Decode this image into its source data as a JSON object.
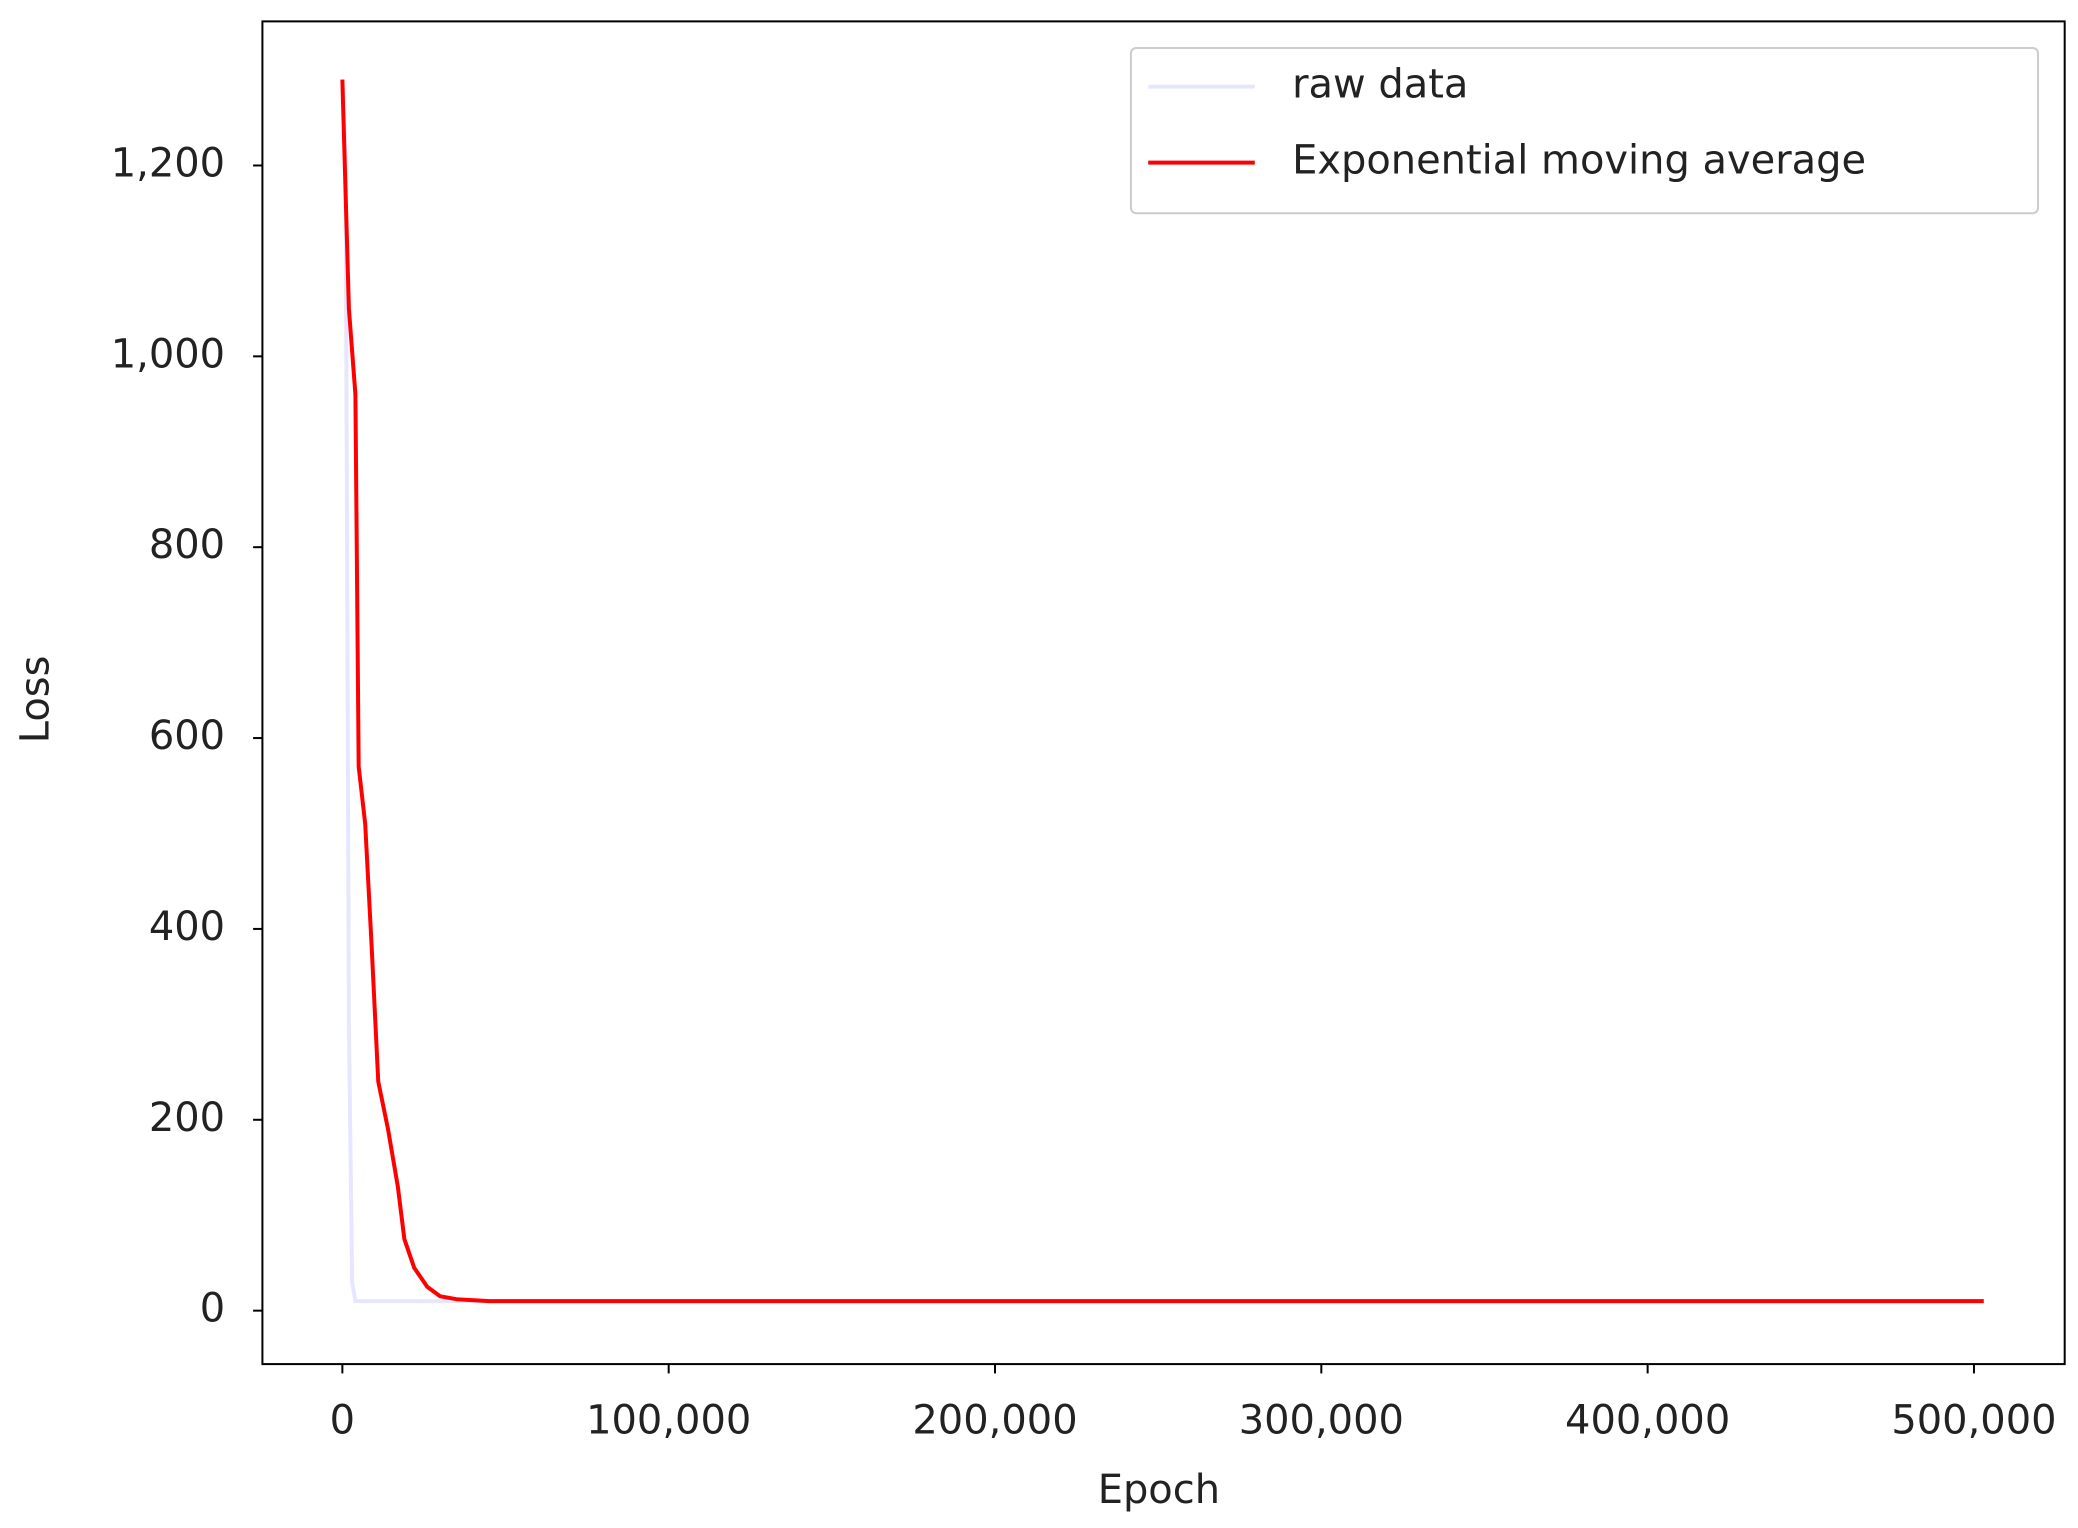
{
  "chart_data": {
    "type": "line",
    "x_label": "Epoch",
    "y_label": "Loss",
    "xlim": [
      -24500,
      527800
    ],
    "ylim": [
      -56,
      1351
    ],
    "xticks": [
      0,
      {
        "value": 100000,
        "label": "100,000"
      },
      {
        "value": 200000,
        "label": "200,000"
      },
      {
        "value": 300000,
        "label": "300,000"
      },
      {
        "value": 400000,
        "label": "400,000"
      },
      {
        "value": 500000,
        "label": "500,000"
      }
    ],
    "yticks": [
      0,
      200,
      400,
      600,
      800,
      {
        "value": 1000,
        "label": "1,000"
      },
      {
        "value": 1200,
        "label": "1,200"
      }
    ],
    "legend": "upper right",
    "series": [
      {
        "name": "raw data",
        "color": "#e6e6ff",
        "x": [
          0,
          1000,
          2000,
          3000,
          4000,
          503000
        ],
        "values": [
          1290,
          1200,
          300,
          30,
          10,
          10
        ]
      },
      {
        "name": "Exponential moving average",
        "color": "#ff0000",
        "x": [
          0,
          2000,
          4000,
          5000,
          7000,
          9000,
          11000,
          14000,
          17000,
          19000,
          22000,
          26000,
          30000,
          35000,
          45000,
          100000,
          503000
        ],
        "values": [
          1290,
          1050,
          960,
          570,
          510,
          380,
          240,
          190,
          130,
          75,
          45,
          25,
          15,
          12,
          10,
          10,
          10
        ]
      }
    ]
  }
}
